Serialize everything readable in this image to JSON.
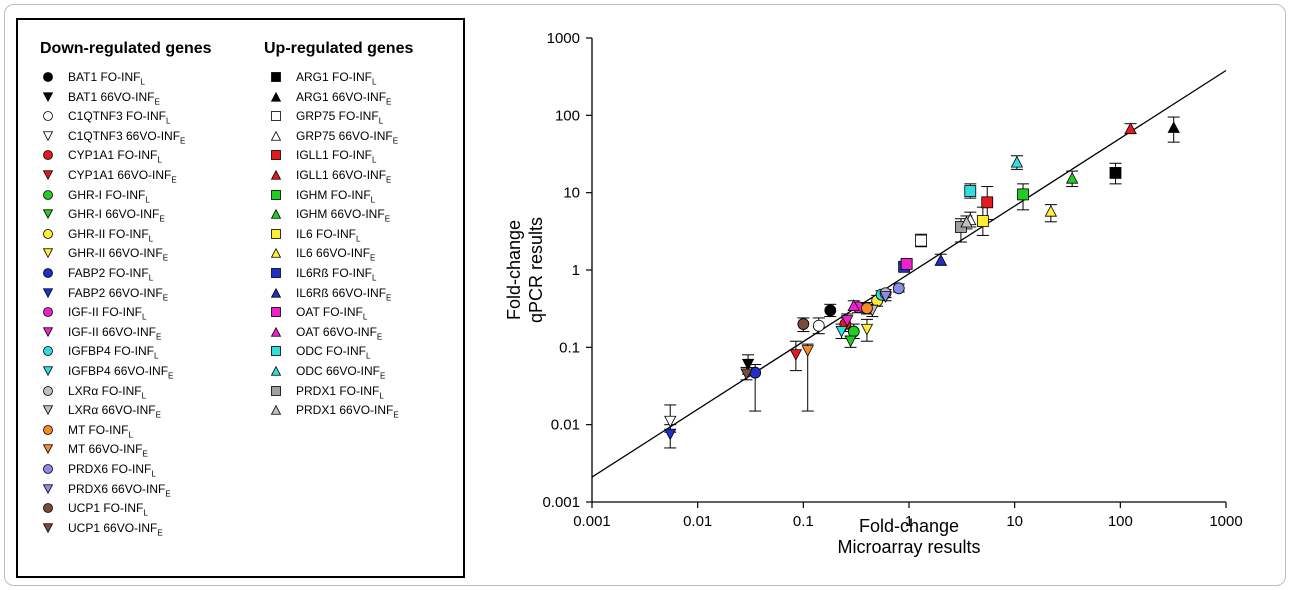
{
  "legend": {
    "down_title": "Down-regulated genes",
    "up_title": "Up-regulated genes",
    "down": [
      {
        "gene": "BAT1 FO-INF",
        "sub": "L",
        "color": "#000000",
        "shape": "circle"
      },
      {
        "gene": "BAT1 66VO-INF",
        "sub": "E",
        "color": "#000000",
        "shape": "triangle-down"
      },
      {
        "gene": "C1QTNF3 FO-INF",
        "sub": "L",
        "color": "#ffffff",
        "shape": "circle"
      },
      {
        "gene": "C1QTNF3 66VO-INF",
        "sub": "E",
        "color": "#ffffff",
        "shape": "triangle-down"
      },
      {
        "gene": "CYP1A1 FO-INF",
        "sub": "L",
        "color": "#e41a1c",
        "shape": "circle"
      },
      {
        "gene": "CYP1A1 66VO-INF",
        "sub": "E",
        "color": "#e41a1c",
        "shape": "triangle-down"
      },
      {
        "gene": "GHR-I FO-INF",
        "sub": "L",
        "color": "#22cc22",
        "shape": "circle"
      },
      {
        "gene": "GHR-I 66VO-INF",
        "sub": "E",
        "color": "#22cc22",
        "shape": "triangle-down"
      },
      {
        "gene": "GHR-II FO-INF",
        "sub": "L",
        "color": "#ffee33",
        "shape": "circle"
      },
      {
        "gene": "GHR-II 66VO-INF",
        "sub": "E",
        "color": "#ffee33",
        "shape": "triangle-down"
      },
      {
        "gene": "FABP2 FO-INF",
        "sub": "L",
        "color": "#1f2fc8",
        "shape": "circle"
      },
      {
        "gene": "FABP2 66VO-INF",
        "sub": "E",
        "color": "#1f2fc8",
        "shape": "triangle-down"
      },
      {
        "gene": "IGF-II FO-INF",
        "sub": "L",
        "color": "#ee22cc",
        "shape": "circle"
      },
      {
        "gene": "IGF-II 66VO-INF",
        "sub": "E",
        "color": "#ee22cc",
        "shape": "triangle-down"
      },
      {
        "gene": "IGFBP4 FO-INF",
        "sub": "L",
        "color": "#33dddd",
        "shape": "circle"
      },
      {
        "gene": "IGFBP4 66VO-INF",
        "sub": "E",
        "color": "#33dddd",
        "shape": "triangle-down"
      },
      {
        "gene": "LXRα FO-INF",
        "sub": "L",
        "color": "#c0c0c0",
        "shape": "circle"
      },
      {
        "gene": "LXRα 66VO-INF",
        "sub": "E",
        "color": "#c0c0c0",
        "shape": "triangle-down"
      },
      {
        "gene": "MT FO-INF",
        "sub": "L",
        "color": "#f28c28",
        "shape": "circle"
      },
      {
        "gene": "MT 66VO-INF",
        "sub": "E",
        "color": "#f28c28",
        "shape": "triangle-down"
      },
      {
        "gene": "PRDX6 FO-INF",
        "sub": "L",
        "color": "#8c8ce6",
        "shape": "circle"
      },
      {
        "gene": "PRDX6 66VO-INF",
        "sub": "E",
        "color": "#8c8ce6",
        "shape": "triangle-down"
      },
      {
        "gene": "UCP1 FO-INF",
        "sub": "L",
        "color": "#7a4a3a",
        "shape": "circle"
      },
      {
        "gene": "UCP1 66VO-INF",
        "sub": "E",
        "color": "#7a4a3a",
        "shape": "triangle-down"
      }
    ],
    "up": [
      {
        "gene": "ARG1 FO-INF",
        "sub": "L",
        "color": "#000000",
        "shape": "square"
      },
      {
        "gene": "ARG1 66VO-INF",
        "sub": "E",
        "color": "#000000",
        "shape": "triangle-up"
      },
      {
        "gene": "GRP75 FO-INF",
        "sub": "L",
        "color": "#ffffff",
        "shape": "square"
      },
      {
        "gene": "GRP75 66VO-INF",
        "sub": "E",
        "color": "#ffffff",
        "shape": "triangle-up"
      },
      {
        "gene": "IGLL1 FO-INF",
        "sub": "L",
        "color": "#e41a1c",
        "shape": "square"
      },
      {
        "gene": "IGLL1 66VO-INF",
        "sub": "E",
        "color": "#e41a1c",
        "shape": "triangle-up"
      },
      {
        "gene": "IGHM FO-INF",
        "sub": "L",
        "color": "#22cc22",
        "shape": "square"
      },
      {
        "gene": "IGHM 66VO-INF",
        "sub": "E",
        "color": "#22cc22",
        "shape": "triangle-up"
      },
      {
        "gene": "IL6 FO-INF",
        "sub": "L",
        "color": "#ffee33",
        "shape": "square"
      },
      {
        "gene": "IL6 66VO-INF",
        "sub": "E",
        "color": "#ffee33",
        "shape": "triangle-up"
      },
      {
        "gene": "IL6Rß FO-INF",
        "sub": "L",
        "color": "#1f2fc8",
        "shape": "square"
      },
      {
        "gene": "IL6Rß 66VO-INF",
        "sub": "E",
        "color": "#1f2fc8",
        "shape": "triangle-up"
      },
      {
        "gene": "OAT FO-INF",
        "sub": "L",
        "color": "#ee22cc",
        "shape": "square"
      },
      {
        "gene": "OAT 66VO-INF",
        "sub": "E",
        "color": "#ee22cc",
        "shape": "triangle-up"
      },
      {
        "gene": "ODC FO-INF",
        "sub": "L",
        "color": "#33dddd",
        "shape": "square"
      },
      {
        "gene": "ODC 66VO-INF",
        "sub": "E",
        "color": "#33dddd",
        "shape": "triangle-up"
      },
      {
        "gene": "PRDX1 FO-INF",
        "sub": "L",
        "color": "#a0a0a0",
        "shape": "square"
      },
      {
        "gene": "PRDX1 66VO-INF",
        "sub": "E",
        "color": "#c0c0c0",
        "shape": "triangle-up"
      }
    ]
  },
  "chart_data": {
    "type": "scatter",
    "xlabel": [
      "Fold-change",
      "Microarray results"
    ],
    "ylabel": [
      "Fold-change",
      "qPCR results"
    ],
    "x_scale": "log",
    "y_scale": "log",
    "xlim": [
      0.001,
      1000
    ],
    "ylim": [
      0.001,
      1000
    ],
    "x_ticks": [
      "0.001",
      "0.01",
      "0.1",
      "1",
      "10",
      "100",
      "1000"
    ],
    "y_ticks": [
      "0.001",
      "0.01",
      "0.1",
      "1",
      "10",
      "100",
      "1000"
    ],
    "grid": false,
    "fit_line": {
      "x": [
        0.001,
        1000
      ],
      "y": [
        0.0021,
        380
      ]
    },
    "points": [
      {
        "x": 0.18,
        "y": 0.3,
        "lo": 0.25,
        "hi": 0.36,
        "color": "#000000",
        "shape": "circle"
      },
      {
        "x": 0.03,
        "y": 0.06,
        "lo": 0.045,
        "hi": 0.08,
        "color": "#000000",
        "shape": "triangle-down"
      },
      {
        "x": 0.14,
        "y": 0.19,
        "lo": 0.15,
        "hi": 0.24,
        "color": "#ffffff",
        "shape": "circle"
      },
      {
        "x": 0.0055,
        "y": 0.011,
        "lo": 0.008,
        "hi": 0.018,
        "color": "#ffffff",
        "shape": "triangle-down"
      },
      {
        "x": 0.25,
        "y": 0.2,
        "lo": 0.16,
        "hi": 0.24,
        "color": "#e41a1c",
        "shape": "circle"
      },
      {
        "x": 0.085,
        "y": 0.08,
        "lo": 0.05,
        "hi": 0.12,
        "color": "#e41a1c",
        "shape": "triangle-down"
      },
      {
        "x": 0.3,
        "y": 0.16,
        "lo": 0.13,
        "hi": 0.2,
        "color": "#22cc22",
        "shape": "circle"
      },
      {
        "x": 0.28,
        "y": 0.12,
        "lo": 0.1,
        "hi": 0.14,
        "color": "#22cc22",
        "shape": "triangle-down"
      },
      {
        "x": 0.5,
        "y": 0.4,
        "lo": 0.34,
        "hi": 0.47,
        "color": "#ffee33",
        "shape": "circle"
      },
      {
        "x": 0.4,
        "y": 0.17,
        "lo": 0.12,
        "hi": 0.23,
        "color": "#ffee33",
        "shape": "triangle-down"
      },
      {
        "x": 0.035,
        "y": 0.047,
        "lo": 0.015,
        "hi": 0.06,
        "color": "#1f2fc8",
        "shape": "circle"
      },
      {
        "x": 0.0055,
        "y": 0.0075,
        "lo": 0.005,
        "hi": 0.01,
        "color": "#1f2fc8",
        "shape": "triangle-down"
      },
      {
        "x": 0.33,
        "y": 0.33,
        "lo": 0.28,
        "hi": 0.38,
        "color": "#ee22cc",
        "shape": "circle"
      },
      {
        "x": 0.26,
        "y": 0.22,
        "lo": 0.18,
        "hi": 0.27,
        "color": "#ee22cc",
        "shape": "triangle-down"
      },
      {
        "x": 0.55,
        "y": 0.48,
        "lo": 0.42,
        "hi": 0.54,
        "color": "#33dddd",
        "shape": "circle"
      },
      {
        "x": 0.23,
        "y": 0.16,
        "lo": 0.13,
        "hi": 0.2,
        "color": "#33dddd",
        "shape": "triangle-down"
      },
      {
        "x": 0.6,
        "y": 0.5,
        "lo": 0.44,
        "hi": 0.56,
        "color": "#c0c0c0",
        "shape": "circle"
      },
      {
        "x": 0.45,
        "y": 0.3,
        "lo": 0.25,
        "hi": 0.36,
        "color": "#c0c0c0",
        "shape": "triangle-down"
      },
      {
        "x": 0.4,
        "y": 0.32,
        "lo": 0.27,
        "hi": 0.38,
        "color": "#f28c28",
        "shape": "circle"
      },
      {
        "x": 0.11,
        "y": 0.09,
        "lo": 0.015,
        "hi": 0.11,
        "color": "#f28c28",
        "shape": "triangle-down"
      },
      {
        "x": 0.8,
        "y": 0.58,
        "lo": 0.52,
        "hi": 0.66,
        "color": "#8c8ce6",
        "shape": "circle"
      },
      {
        "x": 0.6,
        "y": 0.45,
        "lo": 0.4,
        "hi": 0.52,
        "color": "#8c8ce6",
        "shape": "triangle-down"
      },
      {
        "x": 0.1,
        "y": 0.2,
        "lo": 0.16,
        "hi": 0.24,
        "color": "#7a4a3a",
        "shape": "circle"
      },
      {
        "x": 0.029,
        "y": 0.045,
        "lo": 0.038,
        "hi": 0.055,
        "color": "#7a4a3a",
        "shape": "triangle-down"
      },
      {
        "x": 90,
        "y": 18,
        "lo": 13,
        "hi": 24,
        "color": "#000000",
        "shape": "square"
      },
      {
        "x": 320,
        "y": 70,
        "lo": 45,
        "hi": 95,
        "color": "#000000",
        "shape": "triangle-up"
      },
      {
        "x": 1.3,
        "y": 2.4,
        "lo": 2.0,
        "hi": 2.9,
        "color": "#ffffff",
        "shape": "square"
      },
      {
        "x": 3.8,
        "y": 4.5,
        "lo": 3.6,
        "hi": 5.6,
        "color": "#ffffff",
        "shape": "triangle-up"
      },
      {
        "x": 5.5,
        "y": 7.5,
        "lo": 4.5,
        "hi": 12,
        "color": "#e41a1c",
        "shape": "square"
      },
      {
        "x": 125,
        "y": 68,
        "lo": 58,
        "hi": 78,
        "color": "#e41a1c",
        "shape": "triangle-up"
      },
      {
        "x": 12,
        "y": 9.5,
        "lo": 6,
        "hi": 13,
        "color": "#22cc22",
        "shape": "square"
      },
      {
        "x": 35,
        "y": 15.5,
        "lo": 12,
        "hi": 19,
        "color": "#22cc22",
        "shape": "triangle-up"
      },
      {
        "x": 5,
        "y": 4.3,
        "lo": 2.8,
        "hi": 6.5,
        "color": "#ffee33",
        "shape": "square"
      },
      {
        "x": 22,
        "y": 5.8,
        "lo": 4.2,
        "hi": 7,
        "color": "#ffee33",
        "shape": "triangle-up"
      },
      {
        "x": 0.9,
        "y": 1.1,
        "lo": 1.0,
        "hi": 1.2,
        "color": "#1f2fc8",
        "shape": "square"
      },
      {
        "x": 2,
        "y": 1.35,
        "lo": 1.15,
        "hi": 1.6,
        "color": "#1f2fc8",
        "shape": "triangle-up"
      },
      {
        "x": 0.95,
        "y": 1.2,
        "lo": 1.05,
        "hi": 1.35,
        "color": "#ee22cc",
        "shape": "square"
      },
      {
        "x": 0.3,
        "y": 0.35,
        "lo": 0.3,
        "hi": 0.4,
        "color": "#ee22cc",
        "shape": "triangle-up"
      },
      {
        "x": 3.8,
        "y": 10.5,
        "lo": 8.5,
        "hi": 13,
        "color": "#33dddd",
        "shape": "square"
      },
      {
        "x": 10.5,
        "y": 25,
        "lo": 20,
        "hi": 30,
        "color": "#33dddd",
        "shape": "triangle-up"
      },
      {
        "x": 3.1,
        "y": 3.6,
        "lo": 2.3,
        "hi": 4.6,
        "color": "#a0a0a0",
        "shape": "square"
      },
      {
        "x": 3.5,
        "y": 4.2,
        "lo": 3.4,
        "hi": 5,
        "color": "#c0c0c0",
        "shape": "triangle-up"
      }
    ]
  }
}
